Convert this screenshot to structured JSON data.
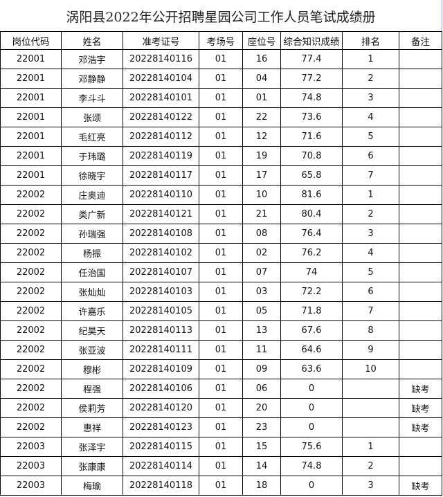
{
  "title": "涡阳县2022年公开招聘星园公司工作人员笔试成绩册",
  "headers": [
    "岗位代码",
    "姓名",
    "准考证号",
    "考场号",
    "座位号",
    "综合知识成绩",
    "排名",
    "备注"
  ],
  "rows": [
    [
      "22001",
      "邓浩宇",
      "20228140116",
      "01",
      "16",
      "77.4",
      "1",
      ""
    ],
    [
      "22001",
      "邓静静",
      "20228140104",
      "01",
      "04",
      "77.2",
      "2",
      ""
    ],
    [
      "22001",
      "李斗斗",
      "20228140101",
      "01",
      "01",
      "74.8",
      "3",
      ""
    ],
    [
      "22001",
      "张颂",
      "20228140122",
      "01",
      "22",
      "73.6",
      "4",
      ""
    ],
    [
      "22001",
      "毛红亮",
      "20228140112",
      "01",
      "12",
      "71.6",
      "5",
      ""
    ],
    [
      "22001",
      "于玮璐",
      "20228140119",
      "01",
      "19",
      "70.8",
      "6",
      ""
    ],
    [
      "22001",
      "徐晓宇",
      "20228140117",
      "01",
      "17",
      "65.8",
      "7",
      ""
    ],
    [
      "22002",
      "庄奥迪",
      "20228140110",
      "01",
      "10",
      "81.6",
      "1",
      ""
    ],
    [
      "22002",
      "类广新",
      "20228140121",
      "01",
      "21",
      "80.4",
      "2",
      ""
    ],
    [
      "22002",
      "孙瑞强",
      "20228140108",
      "01",
      "08",
      "76.4",
      "3",
      ""
    ],
    [
      "22002",
      "杨振",
      "20228140102",
      "01",
      "02",
      "76.2",
      "4",
      ""
    ],
    [
      "22002",
      "任治国",
      "20228140107",
      "01",
      "07",
      "74",
      "5",
      ""
    ],
    [
      "22002",
      "张灿灿",
      "20228140103",
      "01",
      "03",
      "72.2",
      "6",
      ""
    ],
    [
      "22002",
      "许嘉乐",
      "20228140105",
      "01",
      "05",
      "71.8",
      "7",
      ""
    ],
    [
      "22002",
      "纪昊天",
      "20228140113",
      "01",
      "13",
      "67.6",
      "8",
      ""
    ],
    [
      "22002",
      "张亚波",
      "20228140111",
      "01",
      "11",
      "64.6",
      "9",
      ""
    ],
    [
      "22002",
      "穆彬",
      "20228140109",
      "01",
      "09",
      "63.6",
      "10",
      ""
    ],
    [
      "22002",
      "程强",
      "20228140106",
      "01",
      "06",
      "0",
      "",
      "缺考"
    ],
    [
      "22002",
      "侯莉芳",
      "20228140120",
      "01",
      "20",
      "0",
      "",
      "缺考"
    ],
    [
      "22002",
      "惠祥",
      "20228140123",
      "01",
      "23",
      "0",
      "",
      "缺考"
    ],
    [
      "22003",
      "张泽宇",
      "20228140115",
      "01",
      "15",
      "75.6",
      "1",
      ""
    ],
    [
      "22003",
      "张康康",
      "20228140114",
      "01",
      "14",
      "74.8",
      "2",
      ""
    ],
    [
      "22003",
      "梅瑜",
      "20228140118",
      "01",
      "18",
      "0",
      "3",
      "缺考"
    ]
  ]
}
